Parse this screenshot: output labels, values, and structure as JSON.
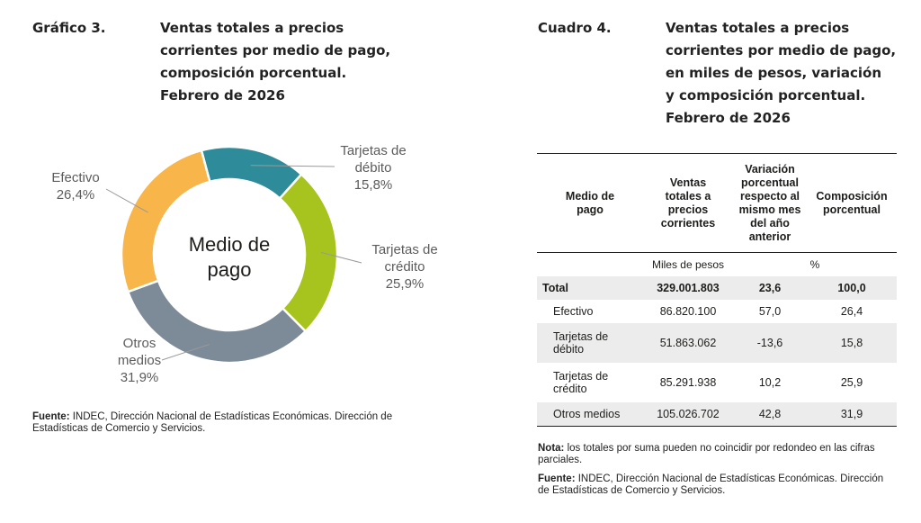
{
  "chart_section": {
    "label": "Gráfico 3.",
    "title_lines": [
      "Ventas totales a precios",
      "corrientes por medio de pago,",
      "composición porcentual.",
      "Febrero de 2026"
    ],
    "source_bold": "Fuente:",
    "source_text": "INDEC, Dirección Nacional de Estadísticas Económicas. Dirección de Estadísticas de Comercio y Servicios."
  },
  "chart_data": {
    "type": "pie",
    "variant": "donut",
    "center_label_lines": [
      "Medio de",
      "pago"
    ],
    "slices": [
      {
        "label_lines": [
          "Tarjetas de",
          "débito"
        ],
        "value": 15.8,
        "value_label": "15,8%",
        "color": "#2e8c9a"
      },
      {
        "label_lines": [
          "Tarjetas de",
          "crédito"
        ],
        "value": 25.9,
        "value_label": "25,9%",
        "color": "#a7c31d"
      },
      {
        "label_lines": [
          "Otros",
          "medios"
        ],
        "value": 31.9,
        "value_label": "31,9%",
        "color": "#7d8b99"
      },
      {
        "label_lines": [
          "Efectivo"
        ],
        "value": 26.4,
        "value_label": "26,4%",
        "color": "#f7b54a"
      }
    ],
    "colors": {
      "label_text": "#5c5c5c",
      "leader_line": "#9a9a9a"
    }
  },
  "table_section": {
    "label": "Cuadro 4.",
    "title_lines": [
      "Ventas totales a precios",
      "corrientes por medio de pago,",
      "en miles de pesos, variación",
      "y composición porcentual.",
      "Febrero de 2026"
    ],
    "headers": {
      "medio": "Medio de pago",
      "ventas": "Ventas totales a precios corrientes",
      "variacion": "Variación porcentual respecto al mismo mes del año anterior",
      "composicion": "Composición porcentual"
    },
    "units": {
      "ventas": "Miles de pesos",
      "pct": "%"
    },
    "rows": [
      {
        "medio": "Total",
        "ventas": "329.001.803",
        "variacion": "23,6",
        "composicion": "100,0"
      },
      {
        "medio": "Efectivo",
        "ventas": "86.820.100",
        "variacion": "57,0",
        "composicion": "26,4"
      },
      {
        "medio": "Tarjetas de débito",
        "ventas": "51.863.062",
        "variacion": "-13,6",
        "composicion": "15,8"
      },
      {
        "medio": "Tarjetas de crédito",
        "ventas": "85.291.938",
        "variacion": "10,2",
        "composicion": "25,9"
      },
      {
        "medio": "Otros medios",
        "ventas": "105.026.702",
        "variacion": "42,8",
        "composicion": "31,9"
      }
    ],
    "note_bold": "Nota:",
    "note_text": "los totales por suma pueden no coincidir por redondeo en las cifras parciales.",
    "source_bold": "Fuente:",
    "source_text": "INDEC, Dirección Nacional de Estadísticas Económicas. Dirección de Estadísticas de Comercio y Servicios."
  }
}
